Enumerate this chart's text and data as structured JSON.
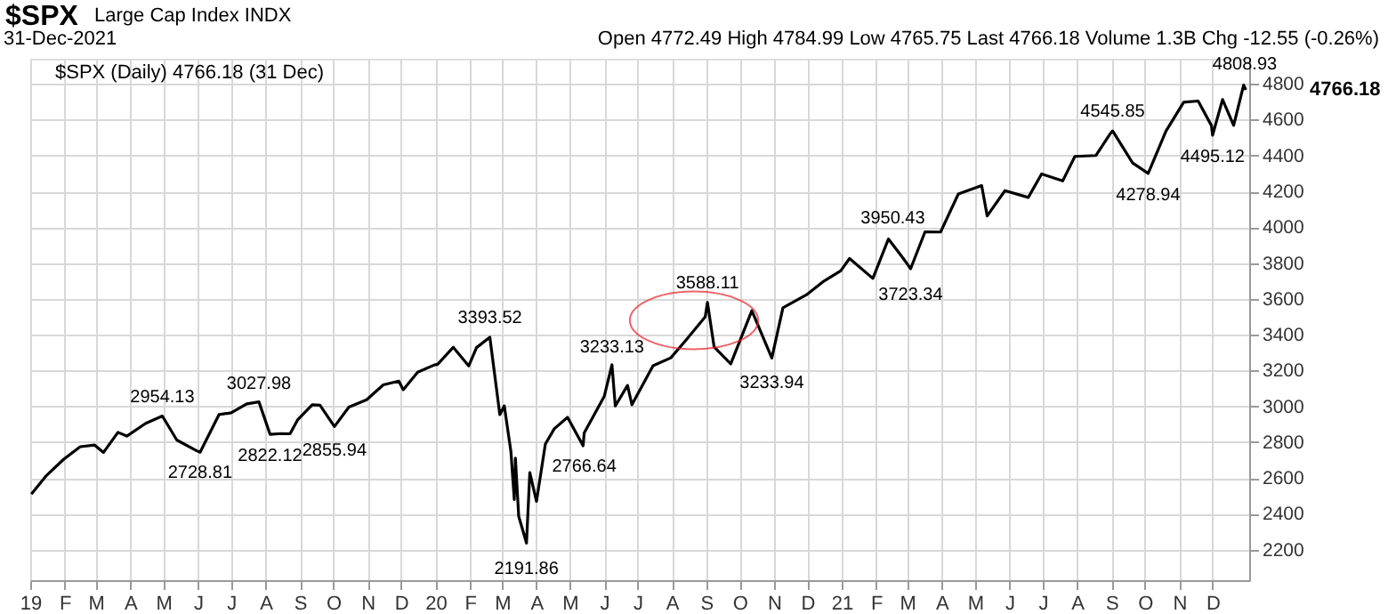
{
  "chart_data": {
    "type": "line",
    "title": "$SPX",
    "subtitle": "Large Cap Index INDX",
    "x": [
      "2019-01-02",
      "2019-01-15",
      "2019-01-31",
      "2019-02-15",
      "2019-02-28",
      "2019-03-08",
      "2019-03-21",
      "2019-03-29",
      "2019-04-15",
      "2019-04-30",
      "2019-05-13",
      "2019-05-31",
      "2019-06-03",
      "2019-06-20",
      "2019-07-01",
      "2019-07-15",
      "2019-07-26",
      "2019-08-05",
      "2019-08-15",
      "2019-08-23",
      "2019-08-30",
      "2019-09-12",
      "2019-09-19",
      "2019-10-02",
      "2019-10-15",
      "2019-10-31",
      "2019-11-15",
      "2019-11-29",
      "2019-12-03",
      "2019-12-16",
      "2019-12-31",
      "2020-01-03",
      "2020-01-17",
      "2020-01-31",
      "2020-02-07",
      "2020-02-19",
      "2020-02-28",
      "2020-03-03",
      "2020-03-09",
      "2020-03-12",
      "2020-03-13",
      "2020-03-16",
      "2020-03-23",
      "2020-03-26",
      "2020-04-01",
      "2020-04-09",
      "2020-04-17",
      "2020-04-29",
      "2020-05-13",
      "2020-05-14",
      "2020-06-01",
      "2020-06-08",
      "2020-06-11",
      "2020-06-22",
      "2020-06-26",
      "2020-07-15",
      "2020-07-31",
      "2020-08-14",
      "2020-08-31",
      "2020-09-02",
      "2020-09-08",
      "2020-09-23",
      "2020-10-12",
      "2020-10-30",
      "2020-11-09",
      "2020-11-30",
      "2020-12-15",
      "2020-12-31",
      "2021-01-08",
      "2021-01-29",
      "2021-02-12",
      "2021-02-25",
      "2021-03-04",
      "2021-03-17",
      "2021-03-31",
      "2021-04-16",
      "2021-05-07",
      "2021-05-12",
      "2021-05-28",
      "2021-06-18",
      "2021-06-30",
      "2021-07-19",
      "2021-07-30",
      "2021-08-18",
      "2021-08-31",
      "2021-09-02",
      "2021-09-20",
      "2021-10-04",
      "2021-10-20",
      "2021-11-05",
      "2021-11-18",
      "2021-11-30",
      "2021-12-01",
      "2021-12-10",
      "2021-12-20",
      "2021-12-29",
      "2021-12-31"
    ],
    "series": [
      {
        "color": "#000000",
        "values": [
          2510,
          2610,
          2704,
          2775,
          2784,
          2743,
          2855,
          2834,
          2905,
          2946,
          2812,
          2752,
          2744,
          2954,
          2964,
          3014,
          3025,
          2844,
          2848,
          2847,
          2926,
          3009,
          3006,
          2887,
          2996,
          3037,
          3120,
          3141,
          3093,
          3191,
          3231,
          3235,
          3330,
          3226,
          3328,
          3386,
          2954,
          3003,
          2746,
          2480,
          2711,
          2386,
          2237,
          2630,
          2470,
          2790,
          2875,
          2939,
          2780,
          2852,
          3055,
          3232,
          3002,
          3117,
          3009,
          3227,
          3271,
          3372,
          3500,
          3580,
          3332,
          3237,
          3534,
          3270,
          3550,
          3622,
          3695,
          3756,
          3825,
          3714,
          3934,
          3829,
          3768,
          3974,
          3973,
          4185,
          4232,
          4063,
          4204,
          4166,
          4297,
          4258,
          4395,
          4400,
          4523,
          4537,
          4358,
          4300,
          4536,
          4697,
          4704,
          4567,
          4513,
          4712,
          4568,
          4793,
          4766
        ]
      }
    ],
    "xlim": [
      "2019-01-01",
      "2022-01-03"
    ],
    "ylim": [
      2030,
      4940
    ],
    "xticks": [
      {
        "value": "2019-01-01",
        "label": "19"
      },
      {
        "value": "2019-02-01",
        "label": "F"
      },
      {
        "value": "2019-03-01",
        "label": "M"
      },
      {
        "value": "2019-04-01",
        "label": "A"
      },
      {
        "value": "2019-05-01",
        "label": "M"
      },
      {
        "value": "2019-06-01",
        "label": "J"
      },
      {
        "value": "2019-07-01",
        "label": "J"
      },
      {
        "value": "2019-08-01",
        "label": "A"
      },
      {
        "value": "2019-09-01",
        "label": "S"
      },
      {
        "value": "2019-10-01",
        "label": "O"
      },
      {
        "value": "2019-11-01",
        "label": "N"
      },
      {
        "value": "2019-12-01",
        "label": "D"
      },
      {
        "value": "2020-01-01",
        "label": "20"
      },
      {
        "value": "2020-02-01",
        "label": "F"
      },
      {
        "value": "2020-03-01",
        "label": "M"
      },
      {
        "value": "2020-04-01",
        "label": "A"
      },
      {
        "value": "2020-05-01",
        "label": "M"
      },
      {
        "value": "2020-06-01",
        "label": "J"
      },
      {
        "value": "2020-07-01",
        "label": "J"
      },
      {
        "value": "2020-08-01",
        "label": "A"
      },
      {
        "value": "2020-09-01",
        "label": "S"
      },
      {
        "value": "2020-10-01",
        "label": "O"
      },
      {
        "value": "2020-11-01",
        "label": "N"
      },
      {
        "value": "2020-12-01",
        "label": "D"
      },
      {
        "value": "2021-01-01",
        "label": "21"
      },
      {
        "value": "2021-02-01",
        "label": "F"
      },
      {
        "value": "2021-03-01",
        "label": "M"
      },
      {
        "value": "2021-04-01",
        "label": "A"
      },
      {
        "value": "2021-05-01",
        "label": "M"
      },
      {
        "value": "2021-06-01",
        "label": "J"
      },
      {
        "value": "2021-07-01",
        "label": "J"
      },
      {
        "value": "2021-08-01",
        "label": "A"
      },
      {
        "value": "2021-09-01",
        "label": "S"
      },
      {
        "value": "2021-10-01",
        "label": "O"
      },
      {
        "value": "2021-11-01",
        "label": "N"
      },
      {
        "value": "2021-12-01",
        "label": "D"
      }
    ],
    "yticks": [
      2200,
      2400,
      2600,
      2800,
      3000,
      3200,
      3400,
      3600,
      3800,
      4000,
      4200,
      4400,
      4600,
      4800
    ],
    "grid": true,
    "marker": "none",
    "line_style": "solid",
    "annotations": [
      "31-Dec-2021",
      "Open 4772.49  High 4784.99  Low 4765.75  Last 4766.18  Volume 1.3B  Chg -12.55 (-0.26%)",
      "$SPX (Daily) 4766.18 (31 Dec)",
      "4766.18",
      {
        "text": "2954.13",
        "x": "2019-04-30",
        "y": 2954.13
      },
      {
        "text": "2728.81",
        "x": "2019-06-03",
        "y": 2728.81
      },
      {
        "text": "3027.98",
        "x": "2019-07-26",
        "y": 3027.98
      },
      {
        "text": "2822.12",
        "x": "2019-08-05",
        "y": 2822.12
      },
      {
        "text": "2855.94",
        "x": "2019-10-02",
        "y": 2855.94
      },
      {
        "text": "3393.52",
        "x": "2020-02-19",
        "y": 3393.52
      },
      {
        "text": "2191.86",
        "x": "2020-03-23",
        "y": 2191.86
      },
      {
        "text": "2766.64",
        "x": "2020-05-14",
        "y": 2766.64
      },
      {
        "text": "3233.13",
        "x": "2020-06-08",
        "y": 3233.13
      },
      {
        "text": "3588.11",
        "x": "2020-09-02",
        "y": 3588.11
      },
      {
        "text": "3233.94",
        "x": "2020-10-30",
        "y": 3233.94
      },
      {
        "text": "3950.43",
        "x": "2021-02-16",
        "y": 3950.43
      },
      {
        "text": "3723.34",
        "x": "2021-03-04",
        "y": 3723.34
      },
      {
        "text": "4545.85",
        "x": "2021-09-02",
        "y": 4545.85
      },
      {
        "text": "4278.94",
        "x": "2021-10-04",
        "y": 4278.94
      },
      {
        "text": "4495.12",
        "x": "2021-12-01",
        "y": 4495.12
      },
      {
        "text": "4808.93",
        "x": "2021-12-30",
        "y": 4808.93
      }
    ]
  }
}
